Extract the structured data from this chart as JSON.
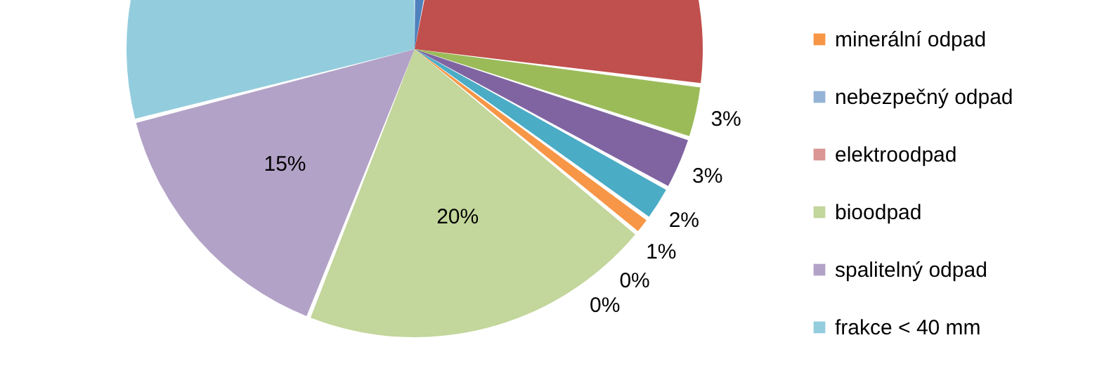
{
  "chart_data": {
    "type": "pie",
    "categories": [
      null,
      null,
      null,
      null,
      null,
      "minerální odpad",
      "nebezpečný odpad",
      "elektroodpad",
      "bioodpad",
      "spalitelný odpad",
      "frakce < 40 mm"
    ],
    "values": [
      3,
      24,
      3,
      3,
      2,
      1,
      0,
      0,
      20,
      15,
      29
    ],
    "value_labels": [
      null,
      null,
      "3%",
      "3%",
      "2%",
      "1%",
      "0%",
      "0%",
      "20%",
      "15%",
      null
    ],
    "colors": [
      "#4f81bd",
      "#c0504d",
      "#9bbb59",
      "#8064a2",
      "#4bacc6",
      "#f79646",
      "#95b3d7",
      "#d99694",
      "#c3d69b",
      "#b3a2c7",
      "#93cddd"
    ],
    "legend": "right"
  }
}
